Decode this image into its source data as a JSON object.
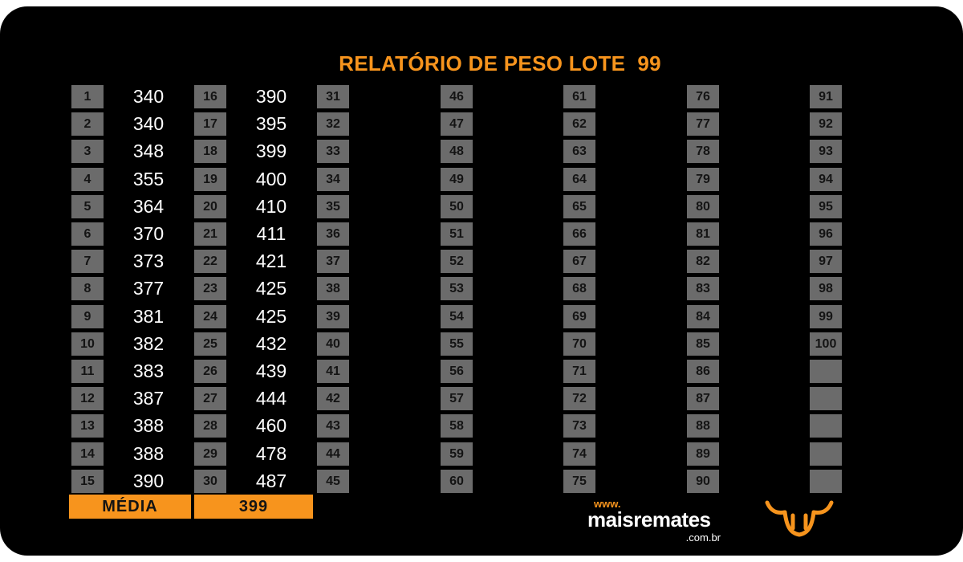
{
  "report": {
    "title": "RELATÓRIO DE PESO LOTE  99",
    "columns": [
      {
        "numbers": [
          "1",
          "2",
          "3",
          "4",
          "5",
          "6",
          "7",
          "8",
          "9",
          "10",
          "11",
          "12",
          "13",
          "14",
          "15"
        ],
        "weights": [
          "340",
          "340",
          "348",
          "355",
          "364",
          "370",
          "373",
          "377",
          "381",
          "382",
          "383",
          "387",
          "388",
          "388",
          "390"
        ]
      },
      {
        "numbers": [
          "16",
          "17",
          "18",
          "19",
          "20",
          "21",
          "22",
          "23",
          "24",
          "25",
          "26",
          "27",
          "28",
          "29",
          "30"
        ],
        "weights": [
          "390",
          "395",
          "399",
          "400",
          "410",
          "411",
          "421",
          "425",
          "425",
          "432",
          "439",
          "444",
          "460",
          "478",
          "487"
        ]
      },
      {
        "numbers": [
          "31",
          "32",
          "33",
          "34",
          "35",
          "36",
          "37",
          "38",
          "39",
          "40",
          "41",
          "42",
          "43",
          "44",
          "45"
        ],
        "weights": []
      },
      {
        "numbers": [
          "46",
          "47",
          "48",
          "49",
          "50",
          "51",
          "52",
          "53",
          "54",
          "55",
          "56",
          "57",
          "58",
          "59",
          "60"
        ],
        "weights": []
      },
      {
        "numbers": [
          "61",
          "62",
          "63",
          "64",
          "65",
          "66",
          "67",
          "68",
          "69",
          "70",
          "71",
          "72",
          "73",
          "74",
          "75"
        ],
        "weights": []
      },
      {
        "numbers": [
          "76",
          "77",
          "78",
          "79",
          "80",
          "81",
          "82",
          "83",
          "84",
          "85",
          "86",
          "87",
          "88",
          "89",
          "90"
        ],
        "weights": []
      },
      {
        "numbers": [
          "91",
          "92",
          "93",
          "94",
          "95",
          "96",
          "97",
          "98",
          "99",
          "100",
          "",
          "",
          "",
          "",
          ""
        ],
        "weights": []
      }
    ],
    "average_label": "MÉDIA",
    "average_value": "399"
  },
  "logo": {
    "www": "www.",
    "name": "maisremates",
    "domain": ".com.br"
  },
  "colors": {
    "accent": "#f7941d",
    "cell": "#6b6b6b",
    "background": "#000000"
  },
  "icons": {
    "brand": "bull-head-icon"
  }
}
